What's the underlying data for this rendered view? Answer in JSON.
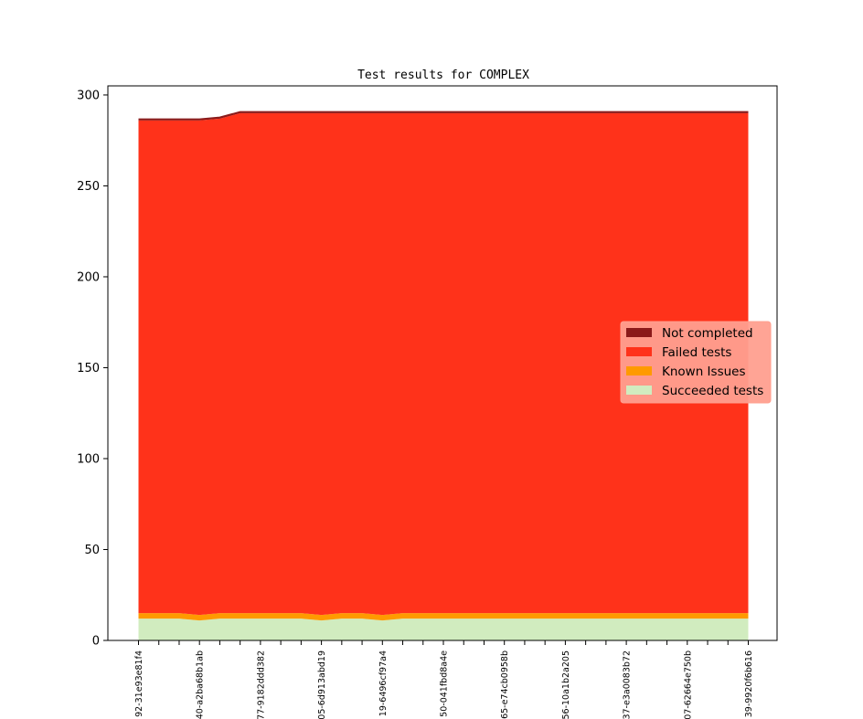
{
  "chart_data": {
    "type": "area",
    "stacked": true,
    "title": "Test results for COMPLEX",
    "xlabel": "",
    "ylabel": "",
    "ylim": [
      0,
      305
    ],
    "yticks": [
      0,
      50,
      100,
      150,
      200,
      250,
      300
    ],
    "x": [
      "92-31e93e81f4",
      "",
      "",
      "40-a2ba68b1ab",
      "",
      "",
      "77-9182ddd382",
      "",
      "",
      "05-6d913abd19",
      "",
      "",
      "19-6496cf97a4",
      "",
      "",
      "50-041fbd8a4e",
      "",
      "",
      "65-e74cb0958b",
      "",
      "",
      "56-10a1b2a205",
      "",
      "",
      "37-e3a0083b72",
      "",
      "",
      "07-62664e750b",
      "",
      "",
      "39-9920f6b616"
    ],
    "series": [
      {
        "name": "Succeeded tests",
        "color": "#d1ecbf",
        "values": [
          12,
          12,
          12,
          11,
          12,
          12,
          12,
          12,
          12,
          11,
          12,
          12,
          11,
          12,
          12,
          12,
          12,
          12,
          12,
          12,
          12,
          12,
          12,
          12,
          12,
          12,
          12,
          12,
          12,
          12,
          12
        ]
      },
      {
        "name": "Known Issues",
        "color": "#ff9a00",
        "values": [
          3,
          3,
          3,
          3,
          3,
          3,
          3,
          3,
          3,
          3,
          3,
          3,
          3,
          3,
          3,
          3,
          3,
          3,
          3,
          3,
          3,
          3,
          3,
          3,
          3,
          3,
          3,
          3,
          3,
          3,
          3
        ]
      },
      {
        "name": "Failed tests",
        "color": "#ff321a",
        "values": [
          271,
          271,
          271,
          272,
          272,
          275,
          275,
          275,
          275,
          276,
          275,
          275,
          276,
          275,
          275,
          275,
          275,
          275,
          275,
          275,
          275,
          275,
          275,
          275,
          275,
          275,
          275,
          275,
          275,
          275,
          275
        ]
      },
      {
        "name": "Not completed",
        "color": "#8b1a1a",
        "values": [
          0.6,
          0.6,
          0.6,
          0.6,
          0.6,
          0.6,
          0.6,
          0.6,
          0.6,
          0.6,
          0.6,
          0.6,
          0.6,
          0.6,
          0.6,
          0.6,
          0.6,
          0.6,
          0.6,
          0.6,
          0.6,
          0.6,
          0.6,
          0.6,
          0.6,
          0.6,
          0.6,
          0.6,
          0.6,
          0.6,
          0.6
        ]
      }
    ],
    "legend": {
      "placement": "center-right",
      "entries": [
        "Not completed",
        "Failed tests",
        "Known Issues",
        "Succeeded tests"
      ],
      "background": "#ff9f8f"
    },
    "grid": false
  }
}
